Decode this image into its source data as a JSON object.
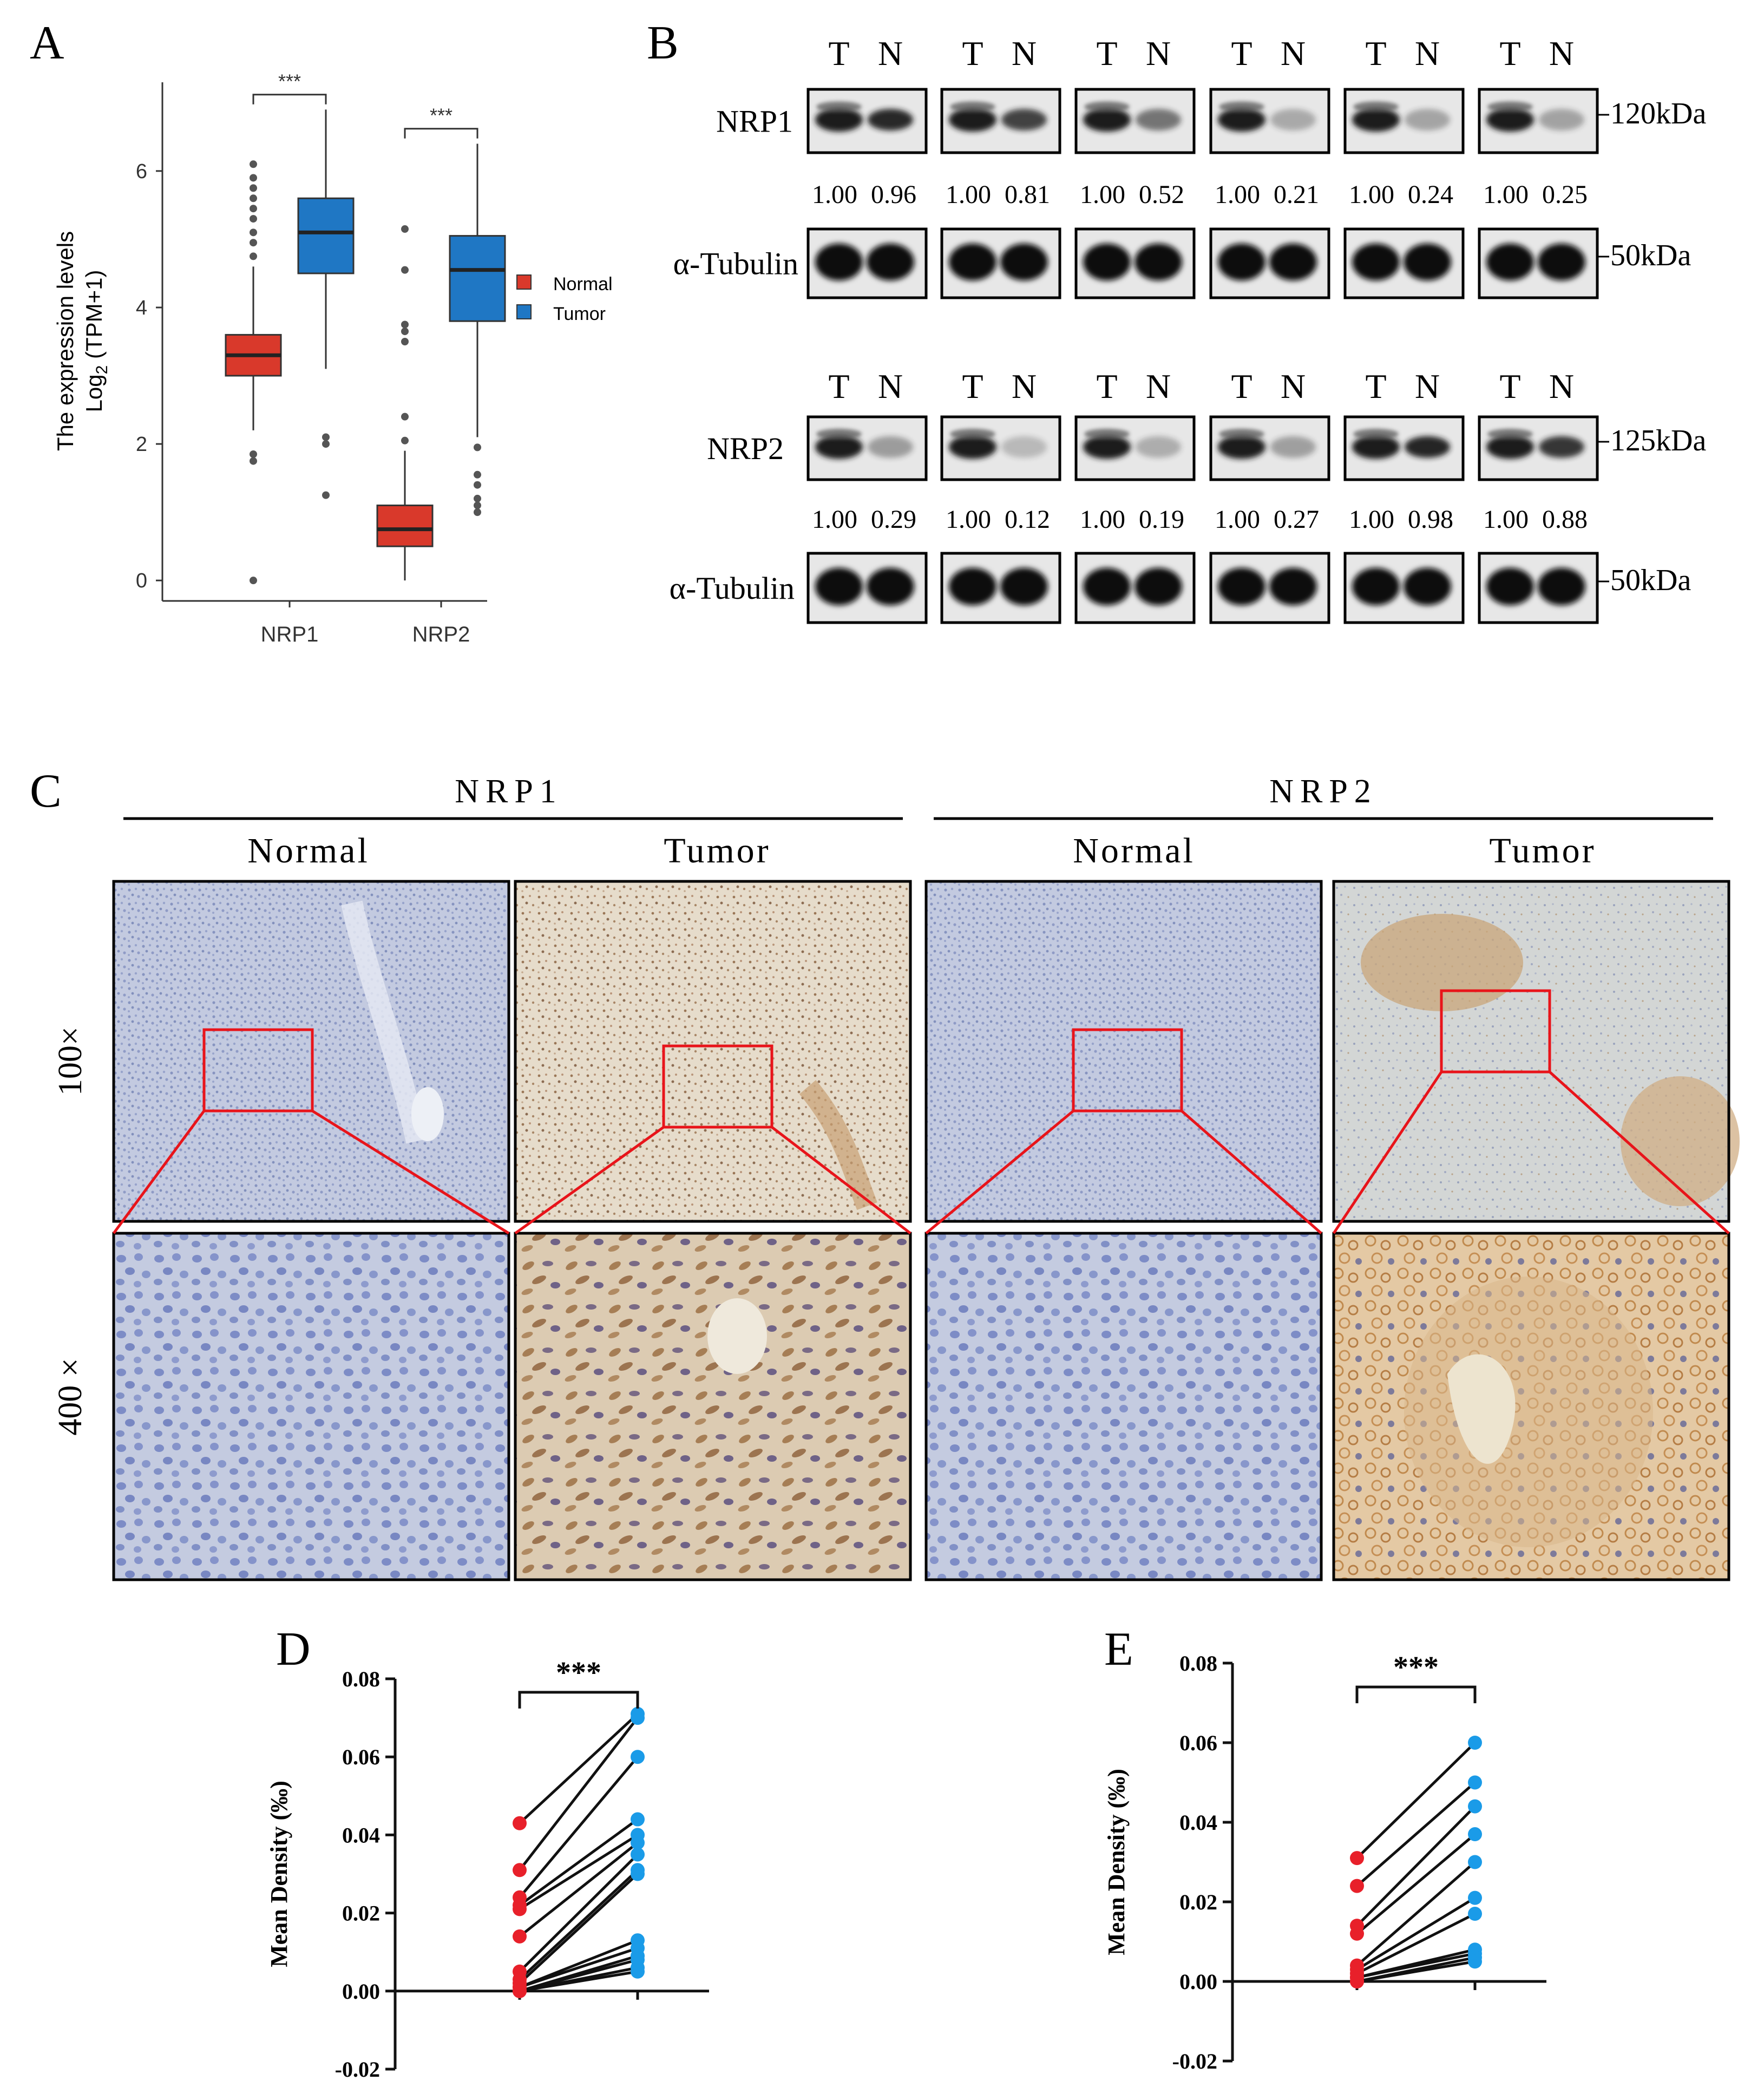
{
  "panels": {
    "A": {
      "label": "A",
      "ylabel_line1": "The expression levels",
      "ylabel_line2_prefix": "Log",
      "ylabel_line2_sub": "2",
      "ylabel_line2_suffix": " (TPM+1)",
      "legend": [
        "Normal",
        "Tumor"
      ],
      "significance": "***"
    },
    "B": {
      "label": "B",
      "lane_labels": [
        "T",
        "N"
      ],
      "blot1": {
        "protein": "NRP1",
        "size": "120kDa",
        "ratios": [
          "1.00",
          "0.96",
          "1.00",
          "0.81",
          "1.00",
          "0.52",
          "1.00",
          "0.21",
          "1.00",
          "0.24",
          "1.00",
          "0.25"
        ]
      },
      "loading1": {
        "protein": "α-Tubulin",
        "size": "50kDa"
      },
      "blot2": {
        "protein": "NRP2",
        "size": "125kDa",
        "ratios": [
          "1.00",
          "0.29",
          "1.00",
          "0.12",
          "1.00",
          "0.19",
          "1.00",
          "0.27",
          "1.00",
          "0.98",
          "1.00",
          "0.88"
        ]
      },
      "loading2": {
        "protein": "α-Tubulin",
        "size": "50kDa"
      }
    },
    "C": {
      "label": "C",
      "group_left": "NRP1",
      "group_right": "NRP2",
      "col_labels": [
        "Normal",
        "Tumor",
        "Normal",
        "Tumor"
      ],
      "row_labels": [
        "100×",
        "400 ×"
      ]
    },
    "D": {
      "label": "D"
    },
    "E": {
      "label": "E"
    }
  },
  "colors": {
    "normal": "#d9392b",
    "tumor": "#1f77c4",
    "scatter_normal": "#e8202a",
    "scatter_tumor": "#1a9be8",
    "zoom_box": "#e8141a",
    "ihc_blue": "#b9c2dd",
    "ihc_brown": "#c9a57d"
  },
  "chart_data": [
    {
      "panel": "A",
      "type": "box",
      "categories": [
        "NRP1",
        "NRP2"
      ],
      "series": [
        {
          "name": "Normal",
          "boxes": [
            {
              "min": 2.2,
              "q1": 3.0,
              "median": 3.3,
              "q3": 3.6,
              "max": 4.6,
              "outliers": [
                0.0,
                1.75,
                1.85,
                4.75,
                4.95,
                5.1,
                5.3,
                5.45,
                5.6,
                5.75,
                5.9,
                6.1
              ]
            },
            {
              "min": 0.0,
              "q1": 0.5,
              "median": 0.75,
              "q3": 1.1,
              "max": 1.9,
              "outliers": [
                2.05,
                2.4,
                3.5,
                3.65,
                3.75,
                4.55,
                5.15
              ]
            }
          ]
        },
        {
          "name": "Tumor",
          "boxes": [
            {
              "min": 3.1,
              "q1": 4.5,
              "median": 5.1,
              "q3": 5.6,
              "max": 6.9,
              "outliers": [
                1.25,
                2.0,
                2.1
              ]
            },
            {
              "min": 2.1,
              "q1": 3.8,
              "median": 4.55,
              "q3": 5.05,
              "max": 6.4,
              "outliers": [
                1.0,
                1.1,
                1.2,
                1.4,
                1.55,
                1.95
              ]
            }
          ]
        }
      ],
      "ylabel": "The expression levels Log2 (TPM+1)",
      "yticks": [
        0,
        2,
        4,
        6
      ],
      "ylim": [
        -0.3,
        7.3
      ],
      "annotations": [
        "***",
        "***"
      ]
    },
    {
      "panel": "D",
      "type": "paired-scatter",
      "categories": [
        "Normal",
        "Tumor"
      ],
      "pairs": [
        [
          0.043,
          0.071
        ],
        [
          0.031,
          0.07
        ],
        [
          0.024,
          0.06
        ],
        [
          0.022,
          0.044
        ],
        [
          0.021,
          0.04
        ],
        [
          0.014,
          0.038
        ],
        [
          0.005,
          0.035
        ],
        [
          0.003,
          0.031
        ],
        [
          0.002,
          0.03
        ],
        [
          0.001,
          0.013
        ],
        [
          0.001,
          0.011
        ],
        [
          0.0,
          0.009
        ],
        [
          0.0,
          0.008
        ],
        [
          0.0,
          0.006
        ],
        [
          0.0,
          0.005
        ]
      ],
      "ylabel": "Mean Density (‰)",
      "yticks": [
        "-0.02",
        "0.00",
        "0.02",
        "0.04",
        "0.06",
        "0.08"
      ],
      "ylim": [
        -0.02,
        0.08
      ],
      "annotation": "***"
    },
    {
      "panel": "E",
      "type": "paired-scatter",
      "categories": [
        "Normal",
        "Tumor"
      ],
      "pairs": [
        [
          0.031,
          0.06
        ],
        [
          0.024,
          0.05
        ],
        [
          0.014,
          0.044
        ],
        [
          0.012,
          0.037
        ],
        [
          0.004,
          0.03
        ],
        [
          0.003,
          0.021
        ],
        [
          0.002,
          0.017
        ],
        [
          0.001,
          0.008
        ],
        [
          0.001,
          0.007
        ],
        [
          0.0,
          0.006
        ],
        [
          0.0,
          0.005
        ]
      ],
      "ylabel": "Mean Density (‰)",
      "yticks": [
        "-0.02",
        "0.00",
        "0.02",
        "0.04",
        "0.06",
        "0.08"
      ],
      "ylim": [
        -0.02,
        0.08
      ],
      "annotation": "***"
    }
  ]
}
